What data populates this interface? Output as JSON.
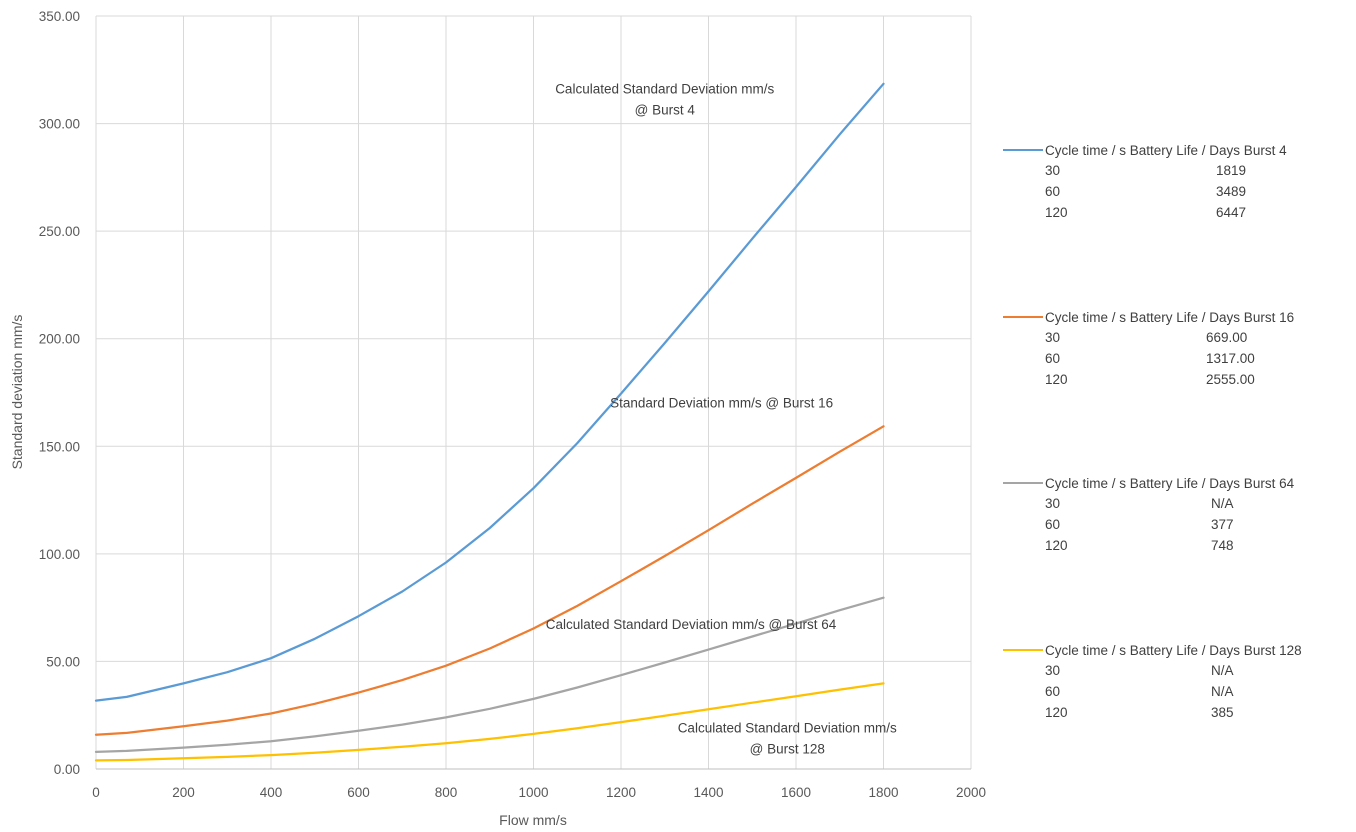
{
  "chart_data": {
    "type": "line",
    "title": "",
    "xlabel": "Flow mm/s",
    "ylabel": "Standard deviation mm/s",
    "xlim": [
      0,
      2000
    ],
    "ylim": [
      0,
      350
    ],
    "xticks": [
      "0",
      "200",
      "400",
      "600",
      "800",
      "1000",
      "1200",
      "1400",
      "1600",
      "1800",
      "2000"
    ],
    "yticks": [
      "0.00",
      "50.00",
      "100.00",
      "150.00",
      "200.00",
      "250.00",
      "300.00",
      "350.00"
    ],
    "grid": true,
    "legend_position": "right",
    "series": [
      {
        "color": "#5b9bd5",
        "x": [
          0,
          70,
          200,
          300,
          400,
          500,
          600,
          700,
          800,
          900,
          1000,
          1100,
          1200,
          1300,
          1400,
          1500,
          1600,
          1700,
          1800
        ],
        "y": [
          31.8,
          33.5,
          39.8,
          45.0,
          51.5,
          60.5,
          71.0,
          82.5,
          96.0,
          112.0,
          130.5,
          151.5,
          174.5,
          198.0,
          222.0,
          246.5,
          270.5,
          295.0,
          318.5
        ]
      },
      {
        "color": "#ed7d31",
        "x": [
          0,
          70,
          200,
          300,
          400,
          500,
          600,
          700,
          800,
          900,
          1000,
          1100,
          1200,
          1300,
          1400,
          1500,
          1600,
          1700,
          1800
        ],
        "y": [
          15.9,
          16.8,
          19.9,
          22.5,
          25.8,
          30.3,
          35.5,
          41.3,
          48.0,
          56.0,
          65.3,
          75.8,
          87.3,
          99.0,
          111.0,
          123.3,
          135.3,
          147.5,
          159.3
        ]
      },
      {
        "color": "#a5a5a5",
        "x": [
          0,
          70,
          200,
          300,
          400,
          500,
          600,
          700,
          800,
          900,
          1000,
          1100,
          1200,
          1300,
          1400,
          1500,
          1600,
          1700,
          1800
        ],
        "y": [
          7.95,
          8.4,
          9.95,
          11.25,
          12.9,
          15.15,
          17.75,
          20.65,
          24.0,
          28.0,
          32.6,
          37.9,
          43.6,
          49.5,
          55.5,
          61.6,
          67.6,
          73.8,
          79.6
        ]
      },
      {
        "color": "#ffc000",
        "x": [
          0,
          70,
          200,
          300,
          400,
          500,
          600,
          700,
          800,
          900,
          1000,
          1100,
          1200,
          1300,
          1400,
          1500,
          1600,
          1700,
          1800
        ],
        "y": [
          3.98,
          4.2,
          4.98,
          5.63,
          6.45,
          7.58,
          8.88,
          10.33,
          12.0,
          14.0,
          16.3,
          18.95,
          21.8,
          24.75,
          27.75,
          30.8,
          33.8,
          36.9,
          39.8
        ]
      }
    ],
    "annotations": [
      {
        "lines": [
          "Calculated Standard Deviation mm/s",
          "@ Burst 4"
        ],
        "x": 1300,
        "y": 314
      },
      {
        "lines": [
          "Standard Deviation mm/s @ Burst 16"
        ],
        "x": 1430,
        "y": 168
      },
      {
        "lines": [
          "Calculated Standard Deviation mm/s @ Burst 64"
        ],
        "x": 1360,
        "y": 65
      },
      {
        "lines": [
          "Calculated Standard Deviation mm/s",
          "@ Burst 128"
        ],
        "x": 1580,
        "y": 17
      }
    ]
  },
  "legend": [
    {
      "color": "#5b9bd5",
      "header": "Cycle time / s  Battery Life / Days Burst 4",
      "rows": [
        [
          "30",
          "1819"
        ],
        [
          "60",
          "3489"
        ],
        [
          "120",
          "6447"
        ]
      ]
    },
    {
      "color": "#ed7d31",
      "header": "Cycle time / s Battery Life / Days Burst 16",
      "rows": [
        [
          "30",
          "669.00"
        ],
        [
          "60",
          "1317.00"
        ],
        [
          "120",
          "2555.00"
        ]
      ]
    },
    {
      "color": "#a5a5a5",
      "header": "Cycle time / s Battery Life / Days Burst 64",
      "rows": [
        [
          "30",
          "N/A"
        ],
        [
          "60",
          "377"
        ],
        [
          "120",
          "748"
        ]
      ]
    },
    {
      "color": "#ffc000",
      "header": "Cycle time / s Battery Life / Days Burst 128",
      "rows": [
        [
          "30",
          "N/A"
        ],
        [
          "60",
          "N/A"
        ],
        [
          "120",
          "385"
        ]
      ]
    }
  ]
}
